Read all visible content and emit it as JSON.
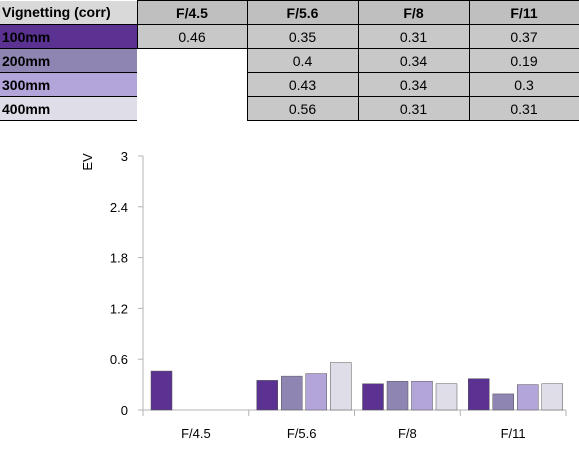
{
  "table": {
    "corner_label": "Vignetting (corr)",
    "columns": [
      "F/4.5",
      "F/5.6",
      "F/8",
      "F/11"
    ],
    "rows": [
      {
        "label": "100mm",
        "color": "#5b3191",
        "values": [
          "0.46",
          "0.35",
          "0.31",
          "0.37"
        ]
      },
      {
        "label": "200mm",
        "color": "#8e85b2",
        "values": [
          "",
          "0.4",
          "0.34",
          "0.19"
        ]
      },
      {
        "label": "300mm",
        "color": "#b3a5d9",
        "values": [
          "",
          "0.43",
          "0.34",
          "0.3"
        ]
      },
      {
        "label": "400mm",
        "color": "#dedde8",
        "values": [
          "",
          "0.56",
          "0.31",
          "0.31"
        ]
      }
    ]
  },
  "chart_data": {
    "type": "bar",
    "ylabel": "EV",
    "ylim": [
      0,
      3
    ],
    "yticks": [
      "0",
      "0.6",
      "1.2",
      "1.8",
      "2.4",
      "3"
    ],
    "grid": false,
    "legend": "none",
    "categories": [
      "F/4.5",
      "F/5.6",
      "F/8",
      "F/11"
    ],
    "series": [
      {
        "name": "100mm",
        "color": "#5b3191",
        "values": [
          0.46,
          0.35,
          0.31,
          0.37
        ]
      },
      {
        "name": "200mm",
        "color": "#8e85b2",
        "values": [
          null,
          0.4,
          0.34,
          0.19
        ]
      },
      {
        "name": "300mm",
        "color": "#b3a5d9",
        "values": [
          null,
          0.43,
          0.34,
          0.3
        ]
      },
      {
        "name": "400mm",
        "color": "#dedde8",
        "values": [
          null,
          0.56,
          0.31,
          0.31
        ]
      }
    ]
  }
}
